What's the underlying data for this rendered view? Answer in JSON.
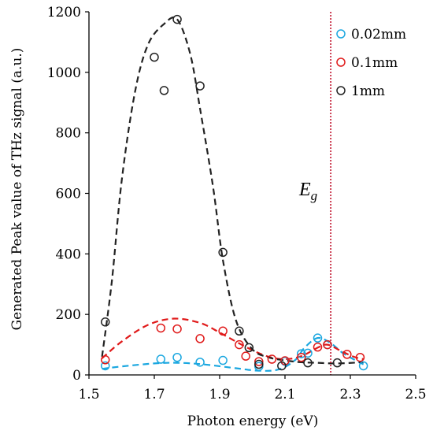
{
  "chart_data": {
    "type": "scatter",
    "xlabel": "Photon energy (eV)",
    "ylabel": "Generated Peak value of THz signal (a.u.)",
    "xlim": [
      1.5,
      2.5
    ],
    "ylim": [
      0,
      1200
    ],
    "xticks": [
      "1.5",
      "1.7",
      "1.9",
      "2.1",
      "2.3",
      "2.5"
    ],
    "yticks": [
      "0",
      "200",
      "400",
      "600",
      "800",
      "1000",
      "1200"
    ],
    "grid": false,
    "legend_position": "top-right",
    "annotation": {
      "text": "E",
      "subscript": "g",
      "x": 2.24
    },
    "series": [
      {
        "name": "0.02mm",
        "color": "#1aa7e0",
        "points": [
          [
            1.55,
            30
          ],
          [
            1.72,
            52
          ],
          [
            1.77,
            58
          ],
          [
            1.84,
            42
          ],
          [
            1.91,
            48
          ],
          [
            2.02,
            28
          ],
          [
            2.1,
            45
          ],
          [
            2.15,
            70
          ],
          [
            2.17,
            72
          ],
          [
            2.2,
            122
          ],
          [
            2.23,
            100
          ],
          [
            2.34,
            30
          ]
        ],
        "fit": [
          [
            1.54,
            20
          ],
          [
            1.6,
            28
          ],
          [
            1.7,
            38
          ],
          [
            1.77,
            40
          ],
          [
            1.85,
            35
          ],
          [
            1.95,
            22
          ],
          [
            2.02,
            14
          ],
          [
            2.08,
            18
          ],
          [
            2.13,
            48
          ],
          [
            2.16,
            90
          ],
          [
            2.2,
            122
          ],
          [
            2.24,
            105
          ],
          [
            2.28,
            70
          ],
          [
            2.34,
            35
          ]
        ]
      },
      {
        "name": "0.1mm",
        "color": "#e01a1a",
        "points": [
          [
            1.55,
            50
          ],
          [
            1.72,
            155
          ],
          [
            1.77,
            152
          ],
          [
            1.84,
            120
          ],
          [
            1.91,
            145
          ],
          [
            1.96,
            100
          ],
          [
            1.98,
            62
          ],
          [
            2.02,
            44
          ],
          [
            2.06,
            52
          ],
          [
            2.1,
            47
          ],
          [
            2.15,
            58
          ],
          [
            2.2,
            92
          ],
          [
            2.23,
            100
          ],
          [
            2.29,
            68
          ],
          [
            2.33,
            58
          ]
        ],
        "fit": [
          [
            1.54,
            55
          ],
          [
            1.6,
            110
          ],
          [
            1.68,
            165
          ],
          [
            1.76,
            186
          ],
          [
            1.84,
            172
          ],
          [
            1.9,
            140
          ],
          [
            1.95,
            110
          ],
          [
            2.0,
            82
          ],
          [
            2.05,
            60
          ],
          [
            2.1,
            52
          ],
          [
            2.15,
            62
          ],
          [
            2.2,
            90
          ],
          [
            2.23,
            100
          ],
          [
            2.27,
            80
          ],
          [
            2.31,
            60
          ],
          [
            2.34,
            52
          ]
        ]
      },
      {
        "name": "1mm",
        "color": "#222222",
        "points": [
          [
            1.55,
            175
          ],
          [
            1.7,
            1050
          ],
          [
            1.73,
            940
          ],
          [
            1.77,
            1175
          ],
          [
            1.84,
            955
          ],
          [
            1.91,
            405
          ],
          [
            1.96,
            145
          ],
          [
            1.99,
            90
          ],
          [
            2.02,
            35
          ],
          [
            2.09,
            30
          ],
          [
            2.17,
            40
          ],
          [
            2.26,
            40
          ]
        ],
        "fit": [
          [
            1.54,
            60
          ],
          [
            1.57,
            310
          ],
          [
            1.6,
            640
          ],
          [
            1.64,
            930
          ],
          [
            1.68,
            1090
          ],
          [
            1.73,
            1160
          ],
          [
            1.77,
            1175
          ],
          [
            1.81,
            1060
          ],
          [
            1.84,
            880
          ],
          [
            1.88,
            620
          ],
          [
            1.91,
            380
          ],
          [
            1.95,
            180
          ],
          [
            2.0,
            85
          ],
          [
            2.05,
            58
          ],
          [
            2.1,
            48
          ],
          [
            2.15,
            42
          ],
          [
            2.2,
            40
          ],
          [
            2.26,
            38
          ],
          [
            2.34,
            42
          ]
        ]
      }
    ]
  }
}
